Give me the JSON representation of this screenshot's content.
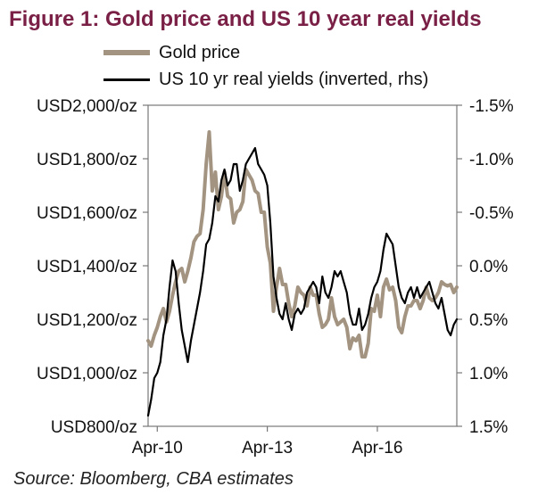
{
  "title": "Figure 1: Gold price and US 10 year real yields",
  "source": "Source: Bloomberg, CBA estimates",
  "colors": {
    "title": "#7a1f45",
    "gold": "#a39482",
    "yield": "#000000"
  },
  "chart_data": {
    "type": "line",
    "title": "Figure 1: Gold price and US 10 year real yields",
    "legend_placement": "top",
    "grid": false,
    "x_ticks": [
      "Apr-10",
      "Apr-13",
      "Apr-16"
    ],
    "x_range": [
      "2010-01",
      "2018-06"
    ],
    "left_axis": {
      "tick_labels": [
        "USD2,000/oz",
        "USD1,800/oz",
        "USD1,600/oz",
        "USD1,400/oz",
        "USD1,200/oz",
        "USD1,000/oz",
        "USD800/oz"
      ],
      "range": [
        800,
        2000
      ],
      "unit": "USD/oz"
    },
    "right_axis": {
      "tick_labels": [
        "-1.5%",
        "-1.0%",
        "-0.5%",
        "0.0%",
        "0.5%",
        "1.0%",
        "1.5%"
      ],
      "range": [
        -1.5,
        1.5
      ],
      "inverted": true,
      "unit": "%"
    },
    "series": [
      {
        "name": "Gold price",
        "axis": "left",
        "points": [
          [
            "2010-01",
            1120
          ],
          [
            "2010-02",
            1100
          ],
          [
            "2010-03",
            1140
          ],
          [
            "2010-04",
            1170
          ],
          [
            "2010-05",
            1210
          ],
          [
            "2010-06",
            1240
          ],
          [
            "2010-07",
            1190
          ],
          [
            "2010-08",
            1230
          ],
          [
            "2010-09",
            1290
          ],
          [
            "2010-10",
            1340
          ],
          [
            "2010-11",
            1380
          ],
          [
            "2010-12",
            1390
          ],
          [
            "2011-01",
            1340
          ],
          [
            "2011-02",
            1380
          ],
          [
            "2011-03",
            1430
          ],
          [
            "2011-04",
            1490
          ],
          [
            "2011-05",
            1510
          ],
          [
            "2011-06",
            1520
          ],
          [
            "2011-07",
            1610
          ],
          [
            "2011-08",
            1780
          ],
          [
            "2011-09",
            1900
          ],
          [
            "2011-10",
            1680
          ],
          [
            "2011-11",
            1750
          ],
          [
            "2011-12",
            1610
          ],
          [
            "2012-01",
            1660
          ],
          [
            "2012-02",
            1750
          ],
          [
            "2012-03",
            1660
          ],
          [
            "2012-04",
            1650
          ],
          [
            "2012-05",
            1560
          ],
          [
            "2012-06",
            1600
          ],
          [
            "2012-07",
            1610
          ],
          [
            "2012-08",
            1640
          ],
          [
            "2012-09",
            1760
          ],
          [
            "2012-10",
            1740
          ],
          [
            "2012-11",
            1720
          ],
          [
            "2012-12",
            1680
          ],
          [
            "2013-01",
            1670
          ],
          [
            "2013-02",
            1600
          ],
          [
            "2013-03",
            1600
          ],
          [
            "2013-04",
            1470
          ],
          [
            "2013-05",
            1410
          ],
          [
            "2013-06",
            1230
          ],
          [
            "2013-07",
            1320
          ],
          [
            "2013-08",
            1390
          ],
          [
            "2013-09",
            1330
          ],
          [
            "2013-10",
            1330
          ],
          [
            "2013-11",
            1260
          ],
          [
            "2013-12",
            1210
          ],
          [
            "2014-01",
            1250
          ],
          [
            "2014-02",
            1320
          ],
          [
            "2014-03",
            1300
          ],
          [
            "2014-04",
            1290
          ],
          [
            "2014-05",
            1250
          ],
          [
            "2014-06",
            1320
          ],
          [
            "2014-07",
            1290
          ],
          [
            "2014-08",
            1290
          ],
          [
            "2014-09",
            1220
          ],
          [
            "2014-10",
            1170
          ],
          [
            "2014-11",
            1180
          ],
          [
            "2014-12",
            1200
          ],
          [
            "2015-01",
            1280
          ],
          [
            "2015-02",
            1210
          ],
          [
            "2015-03",
            1180
          ],
          [
            "2015-04",
            1190
          ],
          [
            "2015-05",
            1200
          ],
          [
            "2015-06",
            1170
          ],
          [
            "2015-07",
            1090
          ],
          [
            "2015-08",
            1130
          ],
          [
            "2015-09",
            1120
          ],
          [
            "2015-10",
            1140
          ],
          [
            "2015-11",
            1060
          ],
          [
            "2015-12",
            1060
          ],
          [
            "2016-01",
            1110
          ],
          [
            "2016-02",
            1240
          ],
          [
            "2016-03",
            1230
          ],
          [
            "2016-04",
            1290
          ],
          [
            "2016-05",
            1210
          ],
          [
            "2016-06",
            1320
          ],
          [
            "2016-07",
            1350
          ],
          [
            "2016-08",
            1310
          ],
          [
            "2016-09",
            1320
          ],
          [
            "2016-10",
            1270
          ],
          [
            "2016-11",
            1170
          ],
          [
            "2016-12",
            1150
          ],
          [
            "2017-01",
            1210
          ],
          [
            "2017-02",
            1250
          ],
          [
            "2017-03",
            1250
          ],
          [
            "2017-04",
            1270
          ],
          [
            "2017-05",
            1270
          ],
          [
            "2017-06",
            1240
          ],
          [
            "2017-07",
            1270
          ],
          [
            "2017-08",
            1320
          ],
          [
            "2017-09",
            1280
          ],
          [
            "2017-10",
            1270
          ],
          [
            "2017-11",
            1280
          ],
          [
            "2017-12",
            1300
          ],
          [
            "2018-01",
            1340
          ],
          [
            "2018-02",
            1330
          ],
          [
            "2018-03",
            1325
          ],
          [
            "2018-04",
            1330
          ],
          [
            "2018-05",
            1300
          ],
          [
            "2018-06",
            1320
          ]
        ]
      },
      {
        "name": "US 10 yr real yields (inverted, rhs)",
        "axis": "right",
        "points": [
          [
            "2010-01",
            1.4
          ],
          [
            "2010-02",
            1.25
          ],
          [
            "2010-03",
            1.05
          ],
          [
            "2010-04",
            1.0
          ],
          [
            "2010-05",
            0.9
          ],
          [
            "2010-06",
            0.65
          ],
          [
            "2010-07",
            0.5
          ],
          [
            "2010-08",
            0.2
          ],
          [
            "2010-09",
            -0.05
          ],
          [
            "2010-10",
            0.05
          ],
          [
            "2010-11",
            0.35
          ],
          [
            "2010-12",
            0.6
          ],
          [
            "2011-01",
            0.75
          ],
          [
            "2011-02",
            0.9
          ],
          [
            "2011-03",
            0.7
          ],
          [
            "2011-04",
            0.55
          ],
          [
            "2011-05",
            0.4
          ],
          [
            "2011-06",
            0.25
          ],
          [
            "2011-07",
            0.05
          ],
          [
            "2011-08",
            -0.2
          ],
          [
            "2011-09",
            -0.25
          ],
          [
            "2011-10",
            -0.4
          ],
          [
            "2011-11",
            -0.65
          ],
          [
            "2011-12",
            -0.6
          ],
          [
            "2012-01",
            -0.8
          ],
          [
            "2012-02",
            -0.9
          ],
          [
            "2012-03",
            -0.75
          ],
          [
            "2012-04",
            -0.8
          ],
          [
            "2012-05",
            -0.95
          ],
          [
            "2012-06",
            -0.95
          ],
          [
            "2012-07",
            -0.7
          ],
          [
            "2012-08",
            -0.8
          ],
          [
            "2012-09",
            -0.95
          ],
          [
            "2012-10",
            -1.0
          ],
          [
            "2012-11",
            -1.05
          ],
          [
            "2012-12",
            -1.1
          ],
          [
            "2013-01",
            -0.95
          ],
          [
            "2013-02",
            -0.9
          ],
          [
            "2013-03",
            -0.85
          ],
          [
            "2013-04",
            -0.75
          ],
          [
            "2013-05",
            -0.4
          ],
          [
            "2013-06",
            0.1
          ],
          [
            "2013-07",
            0.3
          ],
          [
            "2013-08",
            0.45
          ],
          [
            "2013-09",
            0.5
          ],
          [
            "2013-10",
            0.35
          ],
          [
            "2013-11",
            0.5
          ],
          [
            "2013-12",
            0.6
          ],
          [
            "2014-01",
            0.45
          ],
          [
            "2014-02",
            0.4
          ],
          [
            "2014-03",
            0.45
          ],
          [
            "2014-04",
            0.4
          ],
          [
            "2014-05",
            0.25
          ],
          [
            "2014-06",
            0.2
          ],
          [
            "2014-07",
            0.15
          ],
          [
            "2014-08",
            0.2
          ],
          [
            "2014-09",
            0.35
          ],
          [
            "2014-10",
            0.1
          ],
          [
            "2014-11",
            0.25
          ],
          [
            "2014-12",
            0.3
          ],
          [
            "2015-01",
            0.2
          ],
          [
            "2015-02",
            0.05
          ],
          [
            "2015-03",
            0.1
          ],
          [
            "2015-04",
            0.05
          ],
          [
            "2015-05",
            0.15
          ],
          [
            "2015-06",
            0.25
          ],
          [
            "2015-07",
            0.45
          ],
          [
            "2015-08",
            0.55
          ],
          [
            "2015-09",
            0.55
          ],
          [
            "2015-10",
            0.4
          ],
          [
            "2015-11",
            0.6
          ],
          [
            "2015-12",
            0.55
          ],
          [
            "2016-01",
            0.45
          ],
          [
            "2016-02",
            0.3
          ],
          [
            "2016-03",
            0.2
          ],
          [
            "2016-04",
            0.15
          ],
          [
            "2016-05",
            0.05
          ],
          [
            "2016-06",
            -0.15
          ],
          [
            "2016-07",
            -0.3
          ],
          [
            "2016-08",
            -0.25
          ],
          [
            "2016-09",
            -0.2
          ],
          [
            "2016-10",
            0.0
          ],
          [
            "2016-11",
            0.2
          ],
          [
            "2016-12",
            0.3
          ],
          [
            "2017-01",
            0.35
          ],
          [
            "2017-02",
            0.25
          ],
          [
            "2017-03",
            0.2
          ],
          [
            "2017-04",
            0.3
          ],
          [
            "2017-05",
            0.2
          ],
          [
            "2017-06",
            0.3
          ],
          [
            "2017-07",
            0.25
          ],
          [
            "2017-08",
            0.2
          ],
          [
            "2017-09",
            0.15
          ],
          [
            "2017-10",
            0.25
          ],
          [
            "2017-11",
            0.35
          ],
          [
            "2017-12",
            0.4
          ],
          [
            "2018-01",
            0.3
          ],
          [
            "2018-02",
            0.45
          ],
          [
            "2018-03",
            0.6
          ],
          [
            "2018-04",
            0.65
          ],
          [
            "2018-05",
            0.55
          ],
          [
            "2018-06",
            0.5
          ]
        ]
      }
    ]
  }
}
